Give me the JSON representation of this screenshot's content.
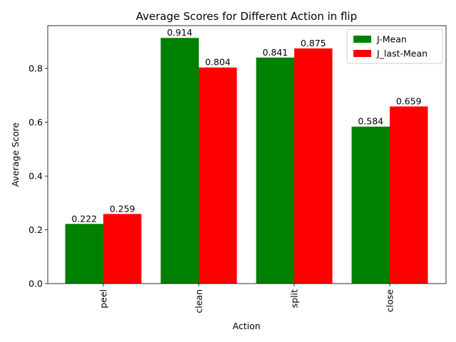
{
  "chart_data": {
    "type": "bar",
    "title": "Average Scores for Different Action in flip",
    "xlabel": "Action",
    "ylabel": "Average Score",
    "categories": [
      "peel",
      "clean",
      "split",
      "close"
    ],
    "series": [
      {
        "name": "J-Mean",
        "values": [
          0.222,
          0.914,
          0.841,
          0.584
        ],
        "color": "#008000"
      },
      {
        "name": "J_last-Mean",
        "values": [
          0.259,
          0.804,
          0.875,
          0.659
        ],
        "color": "#ff0000"
      }
    ],
    "ylim": [
      0,
      0.9597
    ],
    "yticks": [
      "0.0",
      "0.2",
      "0.4",
      "0.6",
      "0.8"
    ],
    "legend_position": "top-right",
    "grid": false
  }
}
